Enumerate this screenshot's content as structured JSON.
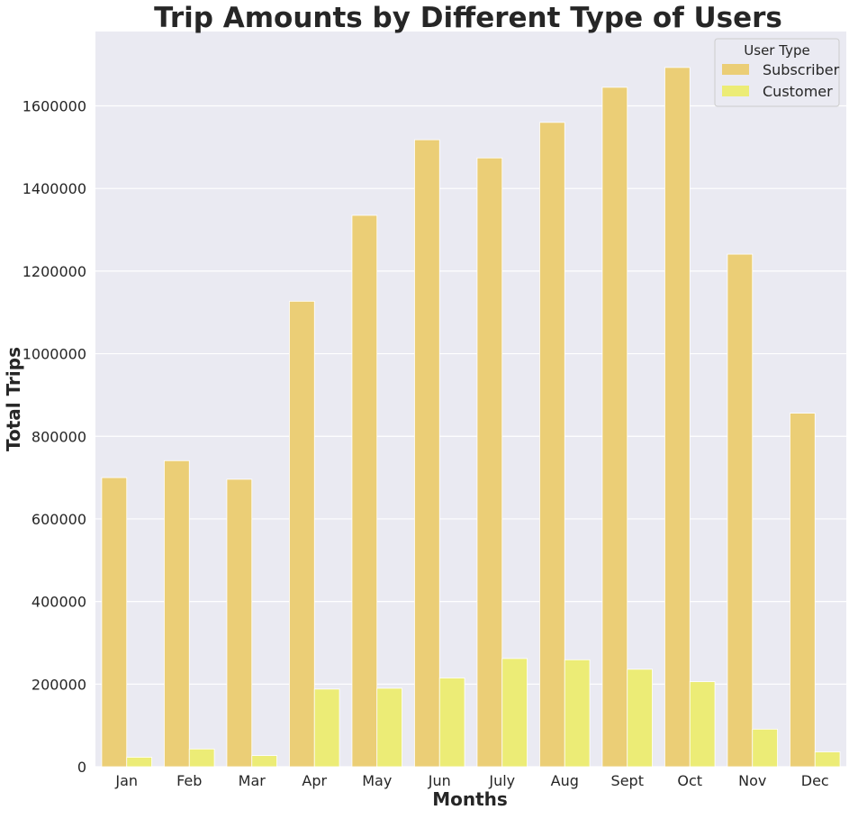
{
  "chart_data": {
    "type": "bar",
    "title": "Trip Amounts by Different Type of Users",
    "xlabel": "Months",
    "ylabel": "Total Trips",
    "categories": [
      "Jan",
      "Feb",
      "Mar",
      "Apr",
      "May",
      "Jun",
      "July",
      "Aug",
      "Sept",
      "Oct",
      "Nov",
      "Dec"
    ],
    "series": [
      {
        "name": "Subscriber",
        "color": "#ebce76",
        "values": [
          700000,
          741000,
          696000,
          1127000,
          1335000,
          1518000,
          1474000,
          1560000,
          1645000,
          1693000,
          1241000,
          856000
        ]
      },
      {
        "name": "Customer",
        "color": "#ecec76",
        "values": [
          23000,
          43000,
          27000,
          188000,
          190000,
          215000,
          262000,
          259000,
          236000,
          206000,
          91000,
          36000
        ]
      }
    ],
    "ylim": [
      0,
      1780000
    ],
    "yticks": [
      0,
      200000,
      400000,
      600000,
      800000,
      1000000,
      1200000,
      1400000,
      1600000
    ],
    "grid": true,
    "legend": {
      "title": "User Type",
      "placement": "top-right"
    },
    "background_color": "#eaeaf2",
    "grid_color": "#ffffff"
  }
}
